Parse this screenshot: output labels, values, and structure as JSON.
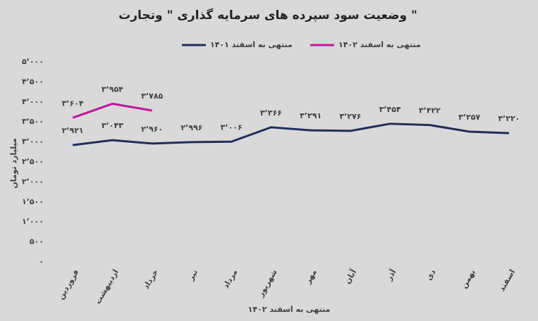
{
  "chart_data": {
    "type": "line",
    "title": "وضعیت سود سپرده های سرمایه گذاری \" وتجارت \"",
    "y_label": "میلیارد تومان",
    "x_label": "منتهی به اسفند ۱۴۰۲",
    "categories": [
      "فروردین",
      "اردیبهشت",
      "خرداد",
      "تیر",
      "مرداد",
      "شهریور",
      "مهر",
      "آبان",
      "آذر",
      "دی",
      "بهمن",
      "اسفند"
    ],
    "series": [
      {
        "name": "منتهی به اسفند ۱۴۰۱",
        "color": "#1f2d5c",
        "values": [
          2921,
          3043,
          2960,
          2996,
          3006,
          3366,
          3291,
          3276,
          3454,
          3422,
          3257,
          3220
        ],
        "value_labels": [
          "۲٬۹۲۱",
          "۳٬۰۴۳",
          "۲٬۹۶۰",
          "۲٬۹۹۶",
          "۳٬۰۰۶",
          "۳٬۳۶۶",
          "۳٬۲۹۱",
          "۳٬۲۷۶",
          "۳٬۴۵۴",
          "۳٬۴۲۲",
          "۳٬۲۵۷",
          "۳٬۲۲۰"
        ]
      },
      {
        "name": "منتهی به اسفند ۱۴۰۲",
        "color": "#c0189b",
        "values": [
          3604,
          3954,
          3785,
          null,
          null,
          null,
          null,
          null,
          null,
          null,
          null,
          null
        ],
        "value_labels": [
          "۳٬۶۰۴",
          "۳٬۹۵۴",
          "۳٬۷۸۵",
          null,
          null,
          null,
          null,
          null,
          null,
          null,
          null,
          null
        ]
      }
    ],
    "ylim": [
      0,
      5000
    ],
    "yticks": [
      {
        "value": 0,
        "label": "۰"
      },
      {
        "value": 500,
        "label": "۵۰۰"
      },
      {
        "value": 1000,
        "label": "۱٬۰۰۰"
      },
      {
        "value": 1500,
        "label": "۱٬۵۰۰"
      },
      {
        "value": 2000,
        "label": "۲٬۰۰۰"
      },
      {
        "value": 2500,
        "label": "۲٬۵۰۰"
      },
      {
        "value": 3000,
        "label": "۳٬۰۰۰"
      },
      {
        "value": 3500,
        "label": "۳٬۵۰۰"
      },
      {
        "value": 4000,
        "label": "۴٬۰۰۰"
      },
      {
        "value": 4500,
        "label": "۴٬۵۰۰"
      },
      {
        "value": 5000,
        "label": "۵٬۰۰۰"
      }
    ],
    "grid": false,
    "legend": "top"
  }
}
